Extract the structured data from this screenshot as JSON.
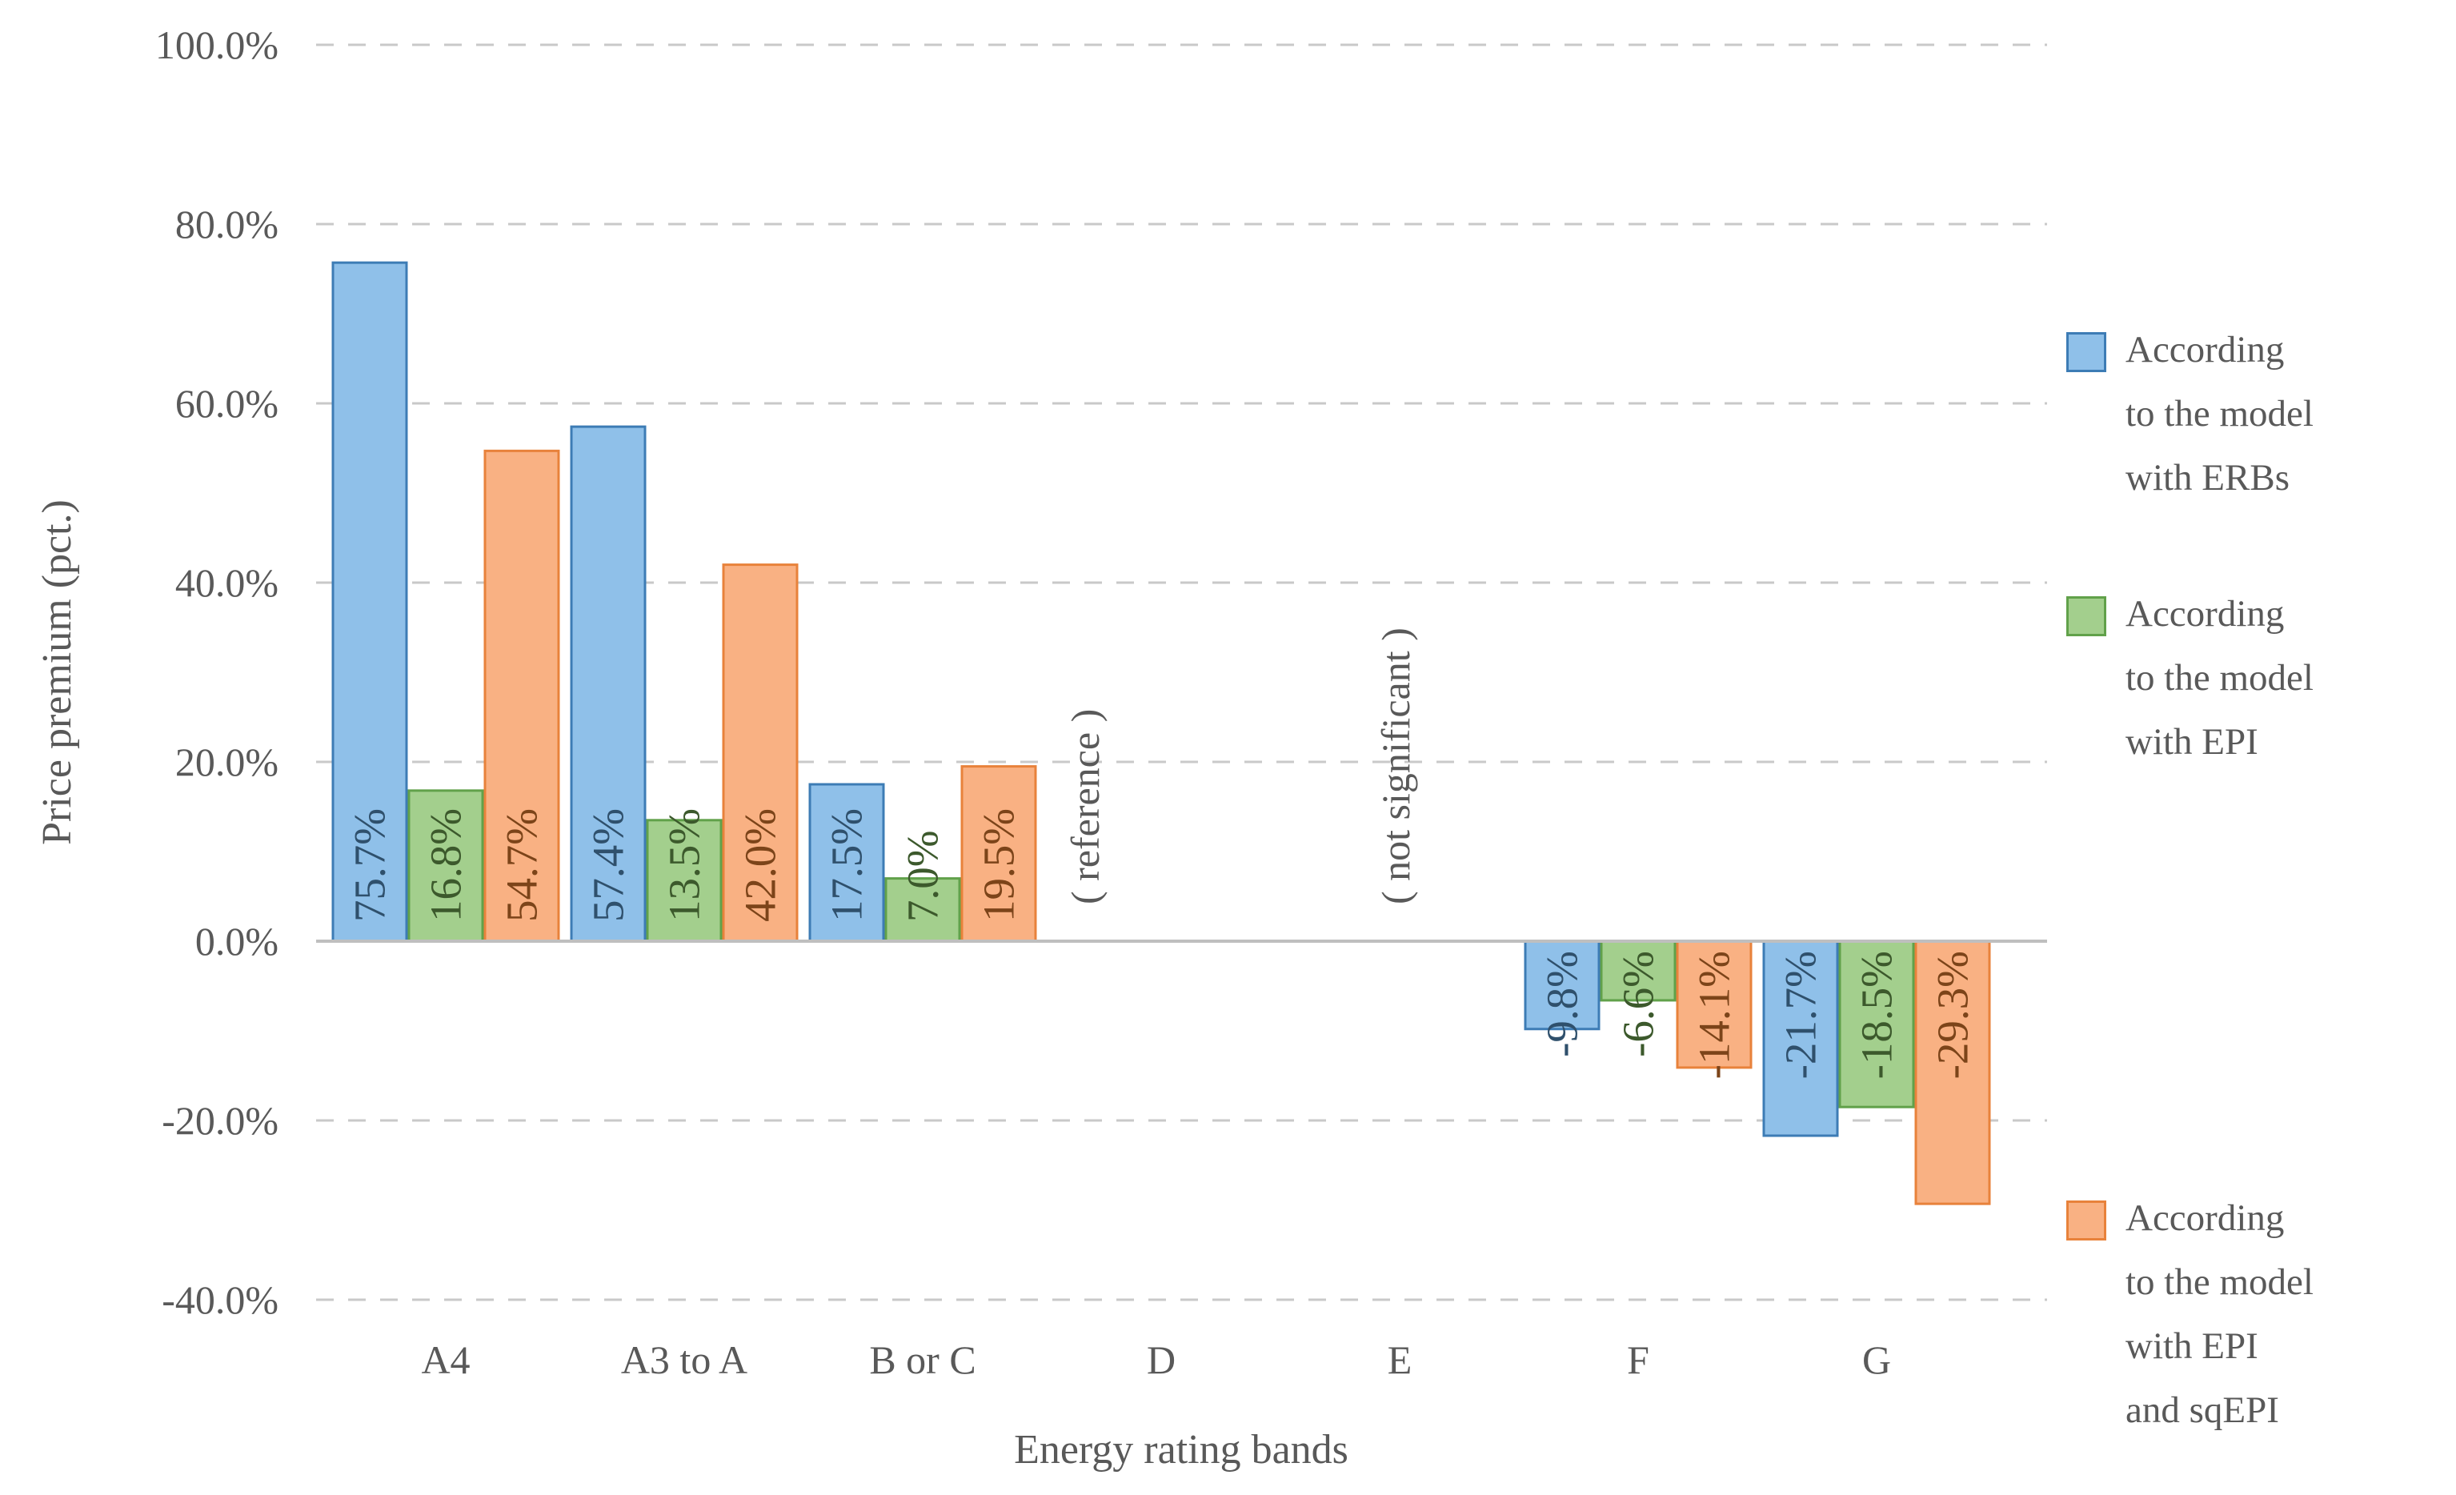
{
  "chart_data": {
    "type": "bar",
    "title": "",
    "xlabel": "Energy rating bands",
    "ylabel": "Price premium (pct.)",
    "ylim": [
      -40,
      100
    ],
    "grid": "horizontal-dashed",
    "legend_position": "right",
    "categories": [
      "A4",
      "A3 to A",
      "B or C",
      "D",
      "E",
      "F",
      "G"
    ],
    "series": [
      {
        "name": "According to the model with ERBs",
        "legend_lines": [
          "According",
          "to the model",
          "with ERBs"
        ],
        "values": [
          75.7,
          57.4,
          17.5,
          null,
          null,
          -9.8,
          -21.7
        ],
        "labels": [
          "75.7%",
          "57.4%",
          "17.5%",
          null,
          null,
          "-9.8%",
          "-21.7%"
        ],
        "fill": "#8FC0E9",
        "stroke": "#3D7CB5",
        "label_color": "#2F506C"
      },
      {
        "name": "According to the model with EPI",
        "legend_lines": [
          "According",
          "to the model",
          "with EPI"
        ],
        "values": [
          16.8,
          13.5,
          7.0,
          null,
          null,
          -6.6,
          -18.5
        ],
        "labels": [
          "16.8%",
          "13.5%",
          "7.0%",
          null,
          null,
          "-6.6%",
          "-18.5%"
        ],
        "fill": "#A3CF8D",
        "stroke": "#61A14A",
        "label_color": "#3C592C"
      },
      {
        "name": "According to the model with EPI and sqEPI",
        "legend_lines": [
          "According",
          "to the model",
          "with EPI",
          "and sqEPI"
        ],
        "values": [
          54.7,
          42.0,
          19.5,
          null,
          null,
          -14.1,
          -29.3
        ],
        "labels": [
          "54.7%",
          "42.0%",
          "19.5%",
          null,
          null,
          "-14.1%",
          "-29.3%"
        ],
        "fill": "#F9B183",
        "stroke": "#E8823B",
        "label_color": "#7C4419"
      }
    ],
    "y_ticks": [
      {
        "value": 100,
        "label": "100.0%"
      },
      {
        "value": 80,
        "label": "80.0%"
      },
      {
        "value": 60,
        "label": "60.0%"
      },
      {
        "value": 40,
        "label": "40.0%"
      },
      {
        "value": 20,
        "label": "20.0%"
      },
      {
        "value": 0,
        "label": "0.0%"
      },
      {
        "value": -20,
        "label": "-20.0%"
      },
      {
        "value": -40,
        "label": "-40.0%"
      }
    ],
    "annotations": [
      {
        "text": "( reference )",
        "category": "D",
        "dx": -95
      },
      {
        "text": "( not significant )",
        "category": "E",
        "dx": -5
      }
    ],
    "colors": {
      "gridline": "#C9C9C9",
      "axis_line": "#BFBFBF",
      "tick_label": "#595959",
      "annotation_text": "#595959",
      "legend_text": "#595959"
    }
  }
}
